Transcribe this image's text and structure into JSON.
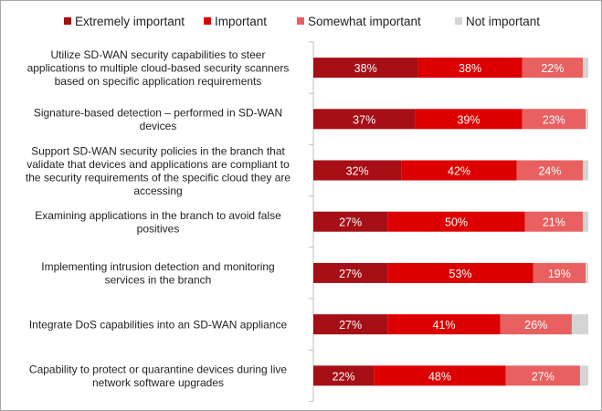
{
  "chart_data": {
    "type": "bar",
    "orientation": "horizontal",
    "stacked": true,
    "legend_position": "top",
    "categories": [
      "Utilize SD-WAN security capabilities to steer applications to multiple cloud-based security scanners based on specific application requirements",
      "Signature-based detection – performed in SD-WAN devices",
      "Support SD-WAN security policies in the branch that validate that devices and applications are compliant to the security requirements of the specific cloud they are accessing",
      "Examining applications in the branch to avoid false positives",
      "Implementing intrusion detection and monitoring services in the branch",
      "Integrate DoS capabilities into an SD-WAN appliance",
      "Capability to protect or quarantine devices during live network software upgrades"
    ],
    "category_lines": [
      [
        "Utilize SD-WAN security capabilities to steer",
        "applications to multiple cloud-based security scanners",
        "based on specific application requirements"
      ],
      [
        "Signature-based detection – performed in SD-WAN",
        "devices"
      ],
      [
        "Support SD-WAN security policies in the branch that",
        "validate that devices and applications are compliant to",
        "the security requirements of the specific cloud they are",
        "accessing"
      ],
      [
        "Examining applications in the branch to avoid false",
        "positives"
      ],
      [
        "Implementing intrusion detection and monitoring",
        "services in the branch"
      ],
      [
        "Integrate DoS capabilities into an SD-WAN appliance"
      ],
      [
        "Capability to protect or quarantine devices during live",
        "network software upgrades"
      ]
    ],
    "series": [
      {
        "name": "Extremely important",
        "color": "#a50f15",
        "values": [
          38,
          37,
          32,
          27,
          27,
          27,
          22
        ]
      },
      {
        "name": "Important",
        "color": "#dd0000",
        "values": [
          38,
          39,
          42,
          50,
          53,
          41,
          48
        ]
      },
      {
        "name": "Somewhat important",
        "color": "#e96060",
        "values": [
          22,
          23,
          24,
          21,
          19,
          26,
          27
        ]
      },
      {
        "name": "Not important",
        "color": "#d4d4d4",
        "values": [
          2,
          1,
          2,
          2,
          1,
          6,
          3
        ]
      }
    ],
    "xlim": [
      0,
      100
    ],
    "grid": false
  }
}
